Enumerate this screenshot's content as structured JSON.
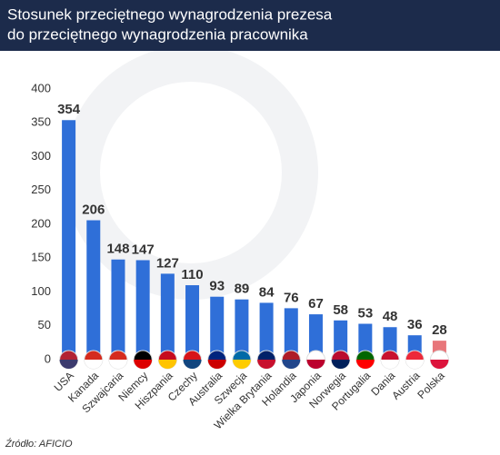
{
  "chart_data": {
    "type": "bar",
    "title_lines": [
      "Stosunek przeciętnego wynagrodzenia prezesa",
      "do przeciętnego wynagrodzenia pracownika"
    ],
    "categories": [
      "USA",
      "Kanada",
      "Szwajcaria",
      "Niemcy",
      "Hiszpania",
      "Czechy",
      "Australia",
      "Szwecja",
      "Wielka Brytania",
      "Holandia",
      "Japonia",
      "Norwegia",
      "Portugalia",
      "Dania",
      "Austria",
      "Polska"
    ],
    "values": [
      354,
      206,
      148,
      147,
      127,
      110,
      93,
      89,
      84,
      76,
      67,
      58,
      53,
      48,
      36,
      28
    ],
    "colors": [
      "#2f6fd8",
      "#2f6fd8",
      "#2f6fd8",
      "#2f6fd8",
      "#2f6fd8",
      "#2f6fd8",
      "#2f6fd8",
      "#2f6fd8",
      "#2f6fd8",
      "#2f6fd8",
      "#2f6fd8",
      "#2f6fd8",
      "#2f6fd8",
      "#2f6fd8",
      "#2f6fd8",
      "#e8767a"
    ],
    "ylim": [
      0,
      400
    ],
    "yticks": [
      0,
      50,
      100,
      150,
      200,
      250,
      300,
      350,
      400
    ],
    "grid": false,
    "source": "Źródło: AFICIO"
  }
}
